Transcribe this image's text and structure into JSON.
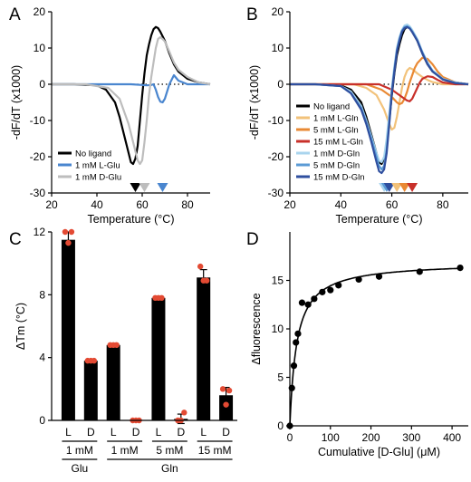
{
  "chart_data": [
    {
      "panel": "A",
      "type": "line",
      "xlabel": "Temperature (°C)",
      "ylabel": "-dF/dT (x1000)",
      "xlim": [
        20,
        90
      ],
      "ylim": [
        -30,
        20
      ],
      "xticks": [
        20,
        40,
        60,
        80
      ],
      "yticks": [
        -30,
        -20,
        -10,
        0,
        10,
        20
      ],
      "zero_line": "dotted",
      "legend_position": "bottom-left",
      "series": [
        {
          "name": "No ligand",
          "color": "#000000",
          "x": [
            20,
            30,
            40,
            44,
            48,
            50,
            52,
            54,
            55,
            56,
            57,
            58,
            59,
            60,
            61,
            62,
            63,
            64,
            65,
            66,
            67,
            68,
            70,
            72,
            74,
            76,
            80,
            85,
            90
          ],
          "y": [
            0,
            0,
            -0.3,
            -1.5,
            -5,
            -9,
            -14,
            -19,
            -21.5,
            -22,
            -20.5,
            -17,
            -10,
            -3,
            3,
            8,
            11,
            13.5,
            15.2,
            15.8,
            15.5,
            14.5,
            12,
            8.5,
            5.5,
            3.5,
            1.5,
            0.5,
            0
          ]
        },
        {
          "name": "1 mM L-Glu",
          "color": "#4a86cf",
          "x": [
            20,
            55,
            60,
            62,
            64,
            65,
            66,
            67,
            68,
            69,
            70,
            71,
            72,
            74,
            76,
            80,
            85,
            90
          ],
          "y": [
            0,
            0,
            -0.2,
            -0.3,
            -0.2,
            0,
            -1.5,
            -3.5,
            -4.8,
            -5,
            -4,
            -2,
            0,
            2.5,
            1,
            0,
            0,
            0
          ]
        },
        {
          "name": "1 mM D-Glu",
          "color": "#bdbdbd",
          "x": [
            20,
            35,
            45,
            50,
            54,
            56,
            58,
            59,
            60,
            61,
            62,
            63,
            64,
            65,
            66,
            67,
            68,
            69,
            70,
            72,
            74,
            76,
            80,
            85,
            90
          ],
          "y": [
            0,
            0,
            -1,
            -4,
            -11,
            -16,
            -21,
            -22,
            -21,
            -16,
            -10,
            -3,
            2,
            6,
            10,
            12.5,
            13,
            12.5,
            11.8,
            9,
            6,
            4,
            2,
            0.5,
            0
          ]
        }
      ],
      "markers": [
        {
          "x": 57,
          "color": "#000000"
        },
        {
          "x": 61,
          "color": "#bdbdbd"
        },
        {
          "x": 69,
          "color": "#4a86cf"
        }
      ]
    },
    {
      "panel": "B",
      "type": "line",
      "xlabel": "Temperature (°C)",
      "ylabel": "-dF/dT (x1000)",
      "xlim": [
        20,
        90
      ],
      "ylim": [
        -30,
        20
      ],
      "xticks": [
        20,
        40,
        60,
        80
      ],
      "yticks": [
        -30,
        -20,
        -10,
        0,
        10,
        20
      ],
      "zero_line": "dotted",
      "legend_position": "bottom-left",
      "series": [
        {
          "name": "No ligand",
          "color": "#000000",
          "x": [
            20,
            30,
            40,
            44,
            48,
            50,
            52,
            54,
            55,
            56,
            57,
            58,
            59,
            60,
            61,
            62,
            63,
            64,
            65,
            66,
            67,
            68,
            70,
            72,
            74,
            76,
            80,
            85,
            90
          ],
          "y": [
            0,
            0,
            -0.3,
            -1.5,
            -5,
            -9,
            -14,
            -19,
            -21.5,
            -22,
            -20.5,
            -17,
            -10,
            -3,
            3,
            8,
            11,
            13.5,
            15.2,
            15.8,
            15.5,
            14.5,
            12,
            8.5,
            5.5,
            3.5,
            1.5,
            0.5,
            0
          ]
        },
        {
          "name": "1 mM L-Gln",
          "color": "#f2c27a",
          "x": [
            20,
            45,
            50,
            54,
            57,
            59,
            60,
            61,
            62,
            63,
            64,
            65,
            66,
            67,
            68,
            70,
            72,
            74,
            76,
            80,
            85,
            90
          ],
          "y": [
            0,
            0,
            -1,
            -3,
            -7,
            -11,
            -12.5,
            -12,
            -9,
            -5,
            -1,
            2,
            3.8,
            4.5,
            4.2,
            3,
            2,
            1.2,
            0.6,
            0,
            0,
            0
          ]
        },
        {
          "name": "5 mM L-Gln",
          "color": "#e98934",
          "x": [
            20,
            50,
            56,
            60,
            62,
            63,
            64,
            65,
            66,
            67,
            68,
            69,
            70,
            72,
            74,
            76,
            78,
            80,
            85,
            90
          ],
          "y": [
            0,
            0,
            -1.5,
            -3.5,
            -5,
            -5.5,
            -5.2,
            -4,
            -2,
            0.5,
            2.5,
            4.5,
            5.8,
            7.3,
            7,
            5.5,
            3.5,
            2,
            0.5,
            0
          ]
        },
        {
          "name": "15 mM L-Gln",
          "color": "#c8302a",
          "x": [
            20,
            55,
            60,
            62,
            64,
            65,
            66,
            67,
            68,
            69,
            70,
            71,
            72,
            74,
            76,
            78,
            80,
            85,
            90
          ],
          "y": [
            0,
            0,
            -1.5,
            -2.5,
            -3.5,
            -4,
            -4.5,
            -4.7,
            -4,
            -2.5,
            -1,
            0.5,
            1.5,
            2.2,
            2,
            1.2,
            0.5,
            0,
            0
          ]
        },
        {
          "name": "1 mM D-Gln",
          "color": "#a9d4ee",
          "x": [
            20,
            30,
            40,
            44,
            48,
            50,
            52,
            54,
            55,
            56,
            57,
            58,
            59,
            60,
            61,
            62,
            63,
            64,
            65,
            66,
            67,
            68,
            70,
            72,
            74,
            76,
            80,
            85,
            90
          ],
          "y": [
            0,
            0,
            -0.5,
            -2,
            -6,
            -10,
            -14.5,
            -19,
            -21,
            -21.5,
            -20,
            -15,
            -8,
            -1,
            5,
            10,
            13,
            15,
            16.2,
            16.5,
            16,
            15,
            12.5,
            9,
            6,
            3.8,
            1.5,
            0.5,
            0
          ]
        },
        {
          "name": "5 mM D-Gln",
          "color": "#5b9bd5",
          "x": [
            20,
            30,
            40,
            44,
            48,
            50,
            52,
            54,
            55,
            56,
            57,
            58,
            59,
            60,
            61,
            62,
            63,
            64,
            65,
            66,
            67,
            68,
            70,
            72,
            74,
            76,
            80,
            85,
            90
          ],
          "y": [
            0,
            0,
            -0.5,
            -2.5,
            -6.5,
            -10.5,
            -15,
            -20,
            -22.5,
            -23.5,
            -22.5,
            -18,
            -10,
            -2,
            4,
            9.5,
            12.5,
            14.8,
            15.8,
            16,
            15.6,
            14.6,
            12.2,
            8.8,
            5.8,
            3.6,
            1.4,
            0.4,
            0
          ]
        },
        {
          "name": "15 mM D-Gln",
          "color": "#2f4f9f",
          "x": [
            20,
            30,
            40,
            44,
            48,
            50,
            52,
            54,
            55,
            56,
            57,
            58,
            59,
            60,
            61,
            62,
            63,
            64,
            65,
            66,
            67,
            68,
            70,
            72,
            74,
            76,
            80,
            85,
            90
          ],
          "y": [
            0,
            0,
            -0.5,
            -2.5,
            -7,
            -11,
            -16,
            -21.5,
            -24,
            -24.5,
            -23.5,
            -19,
            -11,
            -2.5,
            3.5,
            9,
            12,
            14.5,
            15.5,
            15.8,
            15.4,
            14.4,
            12,
            8.5,
            5.5,
            3.5,
            1.3,
            0.3,
            0
          ]
        }
      ],
      "markers": [
        {
          "x": 57,
          "color": "#a9d4ee"
        },
        {
          "x": 58,
          "color": "#5b9bd5"
        },
        {
          "x": 59,
          "color": "#2f4f9f"
        },
        {
          "x": 62,
          "color": "#f2c27a"
        },
        {
          "x": 65,
          "color": "#e98934"
        },
        {
          "x": 68,
          "color": "#c8302a"
        }
      ]
    },
    {
      "panel": "C",
      "type": "bar",
      "ylabel": "ΔTm (°C)",
      "ylim": [
        0,
        12
      ],
      "yticks": [
        0,
        4,
        8,
        12
      ],
      "categories": [
        "L",
        "D",
        "L",
        "D",
        "L",
        "D",
        "L",
        "D"
      ],
      "values": [
        11.5,
        3.8,
        4.8,
        0,
        7.8,
        0.1,
        9.1,
        1.6
      ],
      "errors": [
        0.5,
        0.1,
        0.1,
        0,
        0.1,
        0.3,
        0.5,
        0.5
      ],
      "points": [
        [
          12,
          11.3,
          12
        ],
        [
          3.8,
          3.8,
          3.8
        ],
        [
          4.8,
          4.8,
          4.8
        ],
        [
          0,
          0,
          0
        ],
        [
          7.8,
          7.8,
          7.8
        ],
        [
          0,
          0,
          0.5
        ],
        [
          9.8,
          8.9,
          8.9
        ],
        [
          2,
          1,
          1.9
        ]
      ],
      "bar_color": "#000000",
      "point_color": "#e34a33",
      "conc_labels": [
        "1 mM",
        "1 mM",
        "5 mM",
        "15 mM"
      ],
      "group_labels": [
        "Glu",
        "Gln"
      ]
    },
    {
      "panel": "D",
      "type": "scatter",
      "xlabel": "Cumulative [D-Glu] (μM)",
      "ylabel": "Δfluorescence",
      "xlim": [
        0,
        440
      ],
      "ylim": [
        0,
        20
      ],
      "xticks": [
        0,
        100,
        200,
        300,
        400
      ],
      "yticks": [
        0,
        5,
        10,
        15
      ],
      "x": [
        0,
        5,
        10,
        15,
        20,
        30,
        45,
        60,
        80,
        100,
        120,
        170,
        220,
        320,
        420
      ],
      "y": [
        0,
        3.9,
        6.2,
        8.6,
        9.5,
        12.7,
        12.5,
        13.1,
        13.8,
        14.0,
        14.5,
        15.1,
        15.4,
        15.9,
        16.3
      ],
      "fit": {
        "type": "hyperbolic",
        "bmax": 16.9,
        "kd": 17
      },
      "point_color": "#000000"
    }
  ]
}
